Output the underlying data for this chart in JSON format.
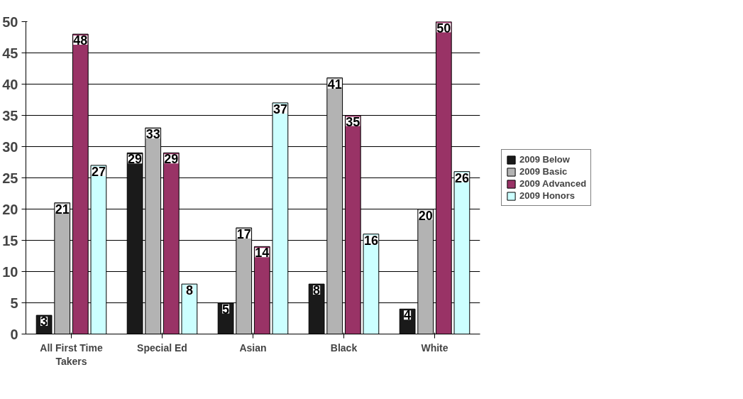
{
  "chart_data": {
    "type": "bar",
    "categories": [
      "All First Time Takers",
      "Special Ed",
      "Asian",
      "Black",
      "White"
    ],
    "series": [
      {
        "name": "2009 Below",
        "color": "#1a1a1a",
        "values": [
          3,
          29,
          5,
          8,
          4
        ]
      },
      {
        "name": "2009 Basic",
        "color": "#b3b3b3",
        "values": [
          21,
          33,
          17,
          41,
          20
        ]
      },
      {
        "name": "2009 Advanced",
        "color": "#993366",
        "values": [
          48,
          29,
          14,
          35,
          50
        ]
      },
      {
        "name": "2009 Honors",
        "color": "#ccffff",
        "values": [
          27,
          8,
          37,
          16,
          26
        ]
      }
    ],
    "ylim": [
      0,
      50
    ],
    "yticks": [
      0,
      5,
      10,
      15,
      20,
      25,
      30,
      35,
      40,
      45,
      50
    ],
    "grid": "y",
    "legend": "right",
    "data_labels": true
  }
}
